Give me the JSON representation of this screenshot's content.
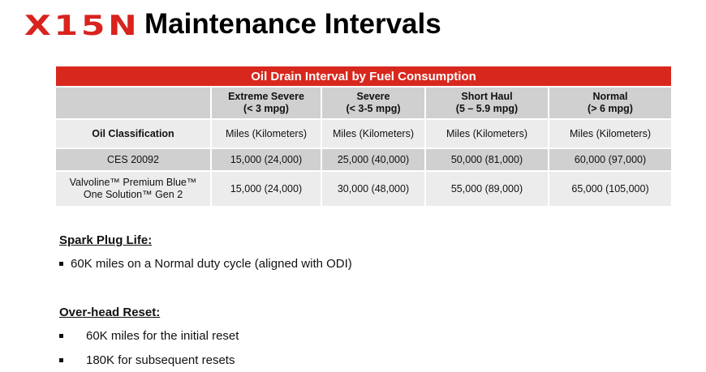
{
  "header": {
    "logo_text": "X15N",
    "title": "Maintenance Intervals"
  },
  "table": {
    "banner": "Oil Drain Interval by Fuel Consumption",
    "columns": [
      {
        "line1": "",
        "line2": ""
      },
      {
        "line1": "Extreme Severe",
        "line2": "(< 3 mpg)"
      },
      {
        "line1": "Severe",
        "line2": "(< 3-5 mpg)"
      },
      {
        "line1": "Short Haul",
        "line2": "(5 – 5.9 mpg)"
      },
      {
        "line1": "Normal",
        "line2": "(> 6 mpg)"
      }
    ],
    "units_row": [
      "Oil Classification",
      "Miles (Kilometers)",
      "Miles (Kilometers)",
      "Miles (Kilometers)",
      "Miles (Kilometers)"
    ],
    "rows": [
      {
        "label_line1": "CES 20092",
        "label_line2": "",
        "values": [
          "15,000 (24,000)",
          "25,000 (40,000)",
          "50,000 (81,000)",
          "60,000 (97,000)"
        ]
      },
      {
        "label_line1": "Valvoline™ Premium Blue™",
        "label_line2": "One Solution™ Gen 2",
        "values": [
          "15,000 (24,000)",
          "30,000 (48,000)",
          "55,000 (89,000)",
          "65,000 (105,000)"
        ]
      }
    ]
  },
  "spark_plug": {
    "heading": "Spark Plug Life:",
    "bullets": [
      "60K miles on a Normal duty cycle (aligned with ODI)"
    ]
  },
  "overhead": {
    "heading": "Over-head Reset:",
    "bullets": [
      "60K miles for the initial reset",
      "180K for subsequent resets"
    ]
  },
  "colors": {
    "brand_red": "#d8281e",
    "header_gray": "#d0d0d0",
    "row_light": "#ececec"
  }
}
